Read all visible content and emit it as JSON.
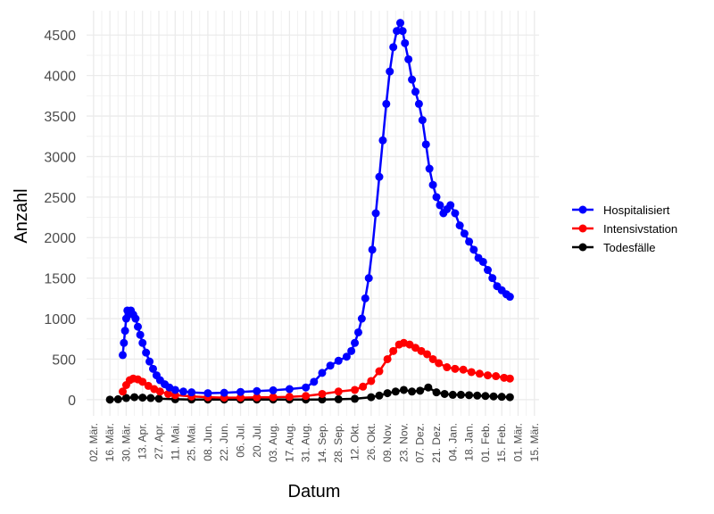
{
  "chart_data": {
    "type": "line",
    "xlabel": "Datum",
    "ylabel": "Anzahl",
    "ylim": [
      -200,
      4800
    ],
    "xlim": [
      "2020-02-25",
      "2021-03-19"
    ],
    "yticks": [
      0,
      500,
      1000,
      1500,
      2000,
      2500,
      3000,
      3500,
      4000,
      4500
    ],
    "xticks": [
      {
        "date": "2020-03-02",
        "label": "02. Mär."
      },
      {
        "date": "2020-03-16",
        "label": "16. Mär."
      },
      {
        "date": "2020-03-30",
        "label": "30. Mär."
      },
      {
        "date": "2020-04-13",
        "label": "13. Apr."
      },
      {
        "date": "2020-04-27",
        "label": "27. Apr."
      },
      {
        "date": "2020-05-11",
        "label": "11. Mai."
      },
      {
        "date": "2020-05-25",
        "label": "25. Mai."
      },
      {
        "date": "2020-06-08",
        "label": "08. Jun."
      },
      {
        "date": "2020-06-22",
        "label": "22. Jun."
      },
      {
        "date": "2020-07-06",
        "label": "06. Jul."
      },
      {
        "date": "2020-07-20",
        "label": "20. Jul."
      },
      {
        "date": "2020-08-03",
        "label": "03. Aug."
      },
      {
        "date": "2020-08-17",
        "label": "17. Aug."
      },
      {
        "date": "2020-08-31",
        "label": "31. Aug."
      },
      {
        "date": "2020-09-14",
        "label": "14. Sep."
      },
      {
        "date": "2020-09-28",
        "label": "28. Sep."
      },
      {
        "date": "2020-10-12",
        "label": "12. Okt."
      },
      {
        "date": "2020-10-26",
        "label": "26. Okt."
      },
      {
        "date": "2020-11-09",
        "label": "09. Nov."
      },
      {
        "date": "2020-11-23",
        "label": "23. Nov."
      },
      {
        "date": "2020-12-07",
        "label": "07. Dez."
      },
      {
        "date": "2020-12-21",
        "label": "21. Dez."
      },
      {
        "date": "2021-01-04",
        "label": "04. Jan."
      },
      {
        "date": "2021-01-18",
        "label": "18. Jan."
      },
      {
        "date": "2021-02-01",
        "label": "01. Feb."
      },
      {
        "date": "2021-02-15",
        "label": "15. Feb."
      },
      {
        "date": "2021-03-01",
        "label": "01. Mär."
      },
      {
        "date": "2021-03-15",
        "label": "15. Mär."
      }
    ],
    "grid": true,
    "legend_position": "right",
    "series": [
      {
        "name": "Hospitalisiert",
        "color": "#0000ff",
        "points": [
          [
            "2020-03-27",
            550
          ],
          [
            "2020-03-28",
            700
          ],
          [
            "2020-03-29",
            850
          ],
          [
            "2020-03-30",
            1000
          ],
          [
            "2020-03-31",
            1100
          ],
          [
            "2020-04-01",
            1050
          ],
          [
            "2020-04-03",
            1100
          ],
          [
            "2020-04-05",
            1050
          ],
          [
            "2020-04-07",
            1000
          ],
          [
            "2020-04-09",
            900
          ],
          [
            "2020-04-11",
            800
          ],
          [
            "2020-04-13",
            700
          ],
          [
            "2020-04-16",
            580
          ],
          [
            "2020-04-19",
            470
          ],
          [
            "2020-04-22",
            380
          ],
          [
            "2020-04-25",
            300
          ],
          [
            "2020-04-28",
            240
          ],
          [
            "2020-05-02",
            190
          ],
          [
            "2020-05-06",
            150
          ],
          [
            "2020-05-11",
            120
          ],
          [
            "2020-05-18",
            100
          ],
          [
            "2020-05-25",
            90
          ],
          [
            "2020-06-08",
            80
          ],
          [
            "2020-06-22",
            85
          ],
          [
            "2020-07-06",
            95
          ],
          [
            "2020-07-20",
            105
          ],
          [
            "2020-08-03",
            115
          ],
          [
            "2020-08-17",
            130
          ],
          [
            "2020-08-31",
            150
          ],
          [
            "2020-09-07",
            220
          ],
          [
            "2020-09-14",
            330
          ],
          [
            "2020-09-21",
            420
          ],
          [
            "2020-09-28",
            480
          ],
          [
            "2020-10-05",
            530
          ],
          [
            "2020-10-09",
            600
          ],
          [
            "2020-10-12",
            700
          ],
          [
            "2020-10-15",
            830
          ],
          [
            "2020-10-18",
            1000
          ],
          [
            "2020-10-21",
            1250
          ],
          [
            "2020-10-24",
            1500
          ],
          [
            "2020-10-27",
            1850
          ],
          [
            "2020-10-30",
            2300
          ],
          [
            "2020-11-02",
            2750
          ],
          [
            "2020-11-05",
            3200
          ],
          [
            "2020-11-08",
            3650
          ],
          [
            "2020-11-11",
            4050
          ],
          [
            "2020-11-14",
            4350
          ],
          [
            "2020-11-17",
            4550
          ],
          [
            "2020-11-20",
            4650
          ],
          [
            "2020-11-22",
            4550
          ],
          [
            "2020-11-24",
            4400
          ],
          [
            "2020-11-27",
            4200
          ],
          [
            "2020-11-30",
            3950
          ],
          [
            "2020-12-03",
            3800
          ],
          [
            "2020-12-06",
            3650
          ],
          [
            "2020-12-09",
            3450
          ],
          [
            "2020-12-12",
            3150
          ],
          [
            "2020-12-15",
            2850
          ],
          [
            "2020-12-18",
            2650
          ],
          [
            "2020-12-21",
            2500
          ],
          [
            "2020-12-24",
            2400
          ],
          [
            "2020-12-27",
            2300
          ],
          [
            "2020-12-30",
            2350
          ],
          [
            "2021-01-02",
            2400
          ],
          [
            "2021-01-06",
            2300
          ],
          [
            "2021-01-10",
            2150
          ],
          [
            "2021-01-14",
            2050
          ],
          [
            "2021-01-18",
            1950
          ],
          [
            "2021-01-22",
            1850
          ],
          [
            "2021-01-26",
            1750
          ],
          [
            "2021-01-30",
            1700
          ],
          [
            "2021-02-03",
            1600
          ],
          [
            "2021-02-07",
            1500
          ],
          [
            "2021-02-11",
            1400
          ],
          [
            "2021-02-15",
            1350
          ],
          [
            "2021-02-19",
            1300
          ],
          [
            "2021-02-22",
            1270
          ]
        ]
      },
      {
        "name": "Intensivstation",
        "color": "#ff0000",
        "points": [
          [
            "2020-03-27",
            100
          ],
          [
            "2020-03-30",
            180
          ],
          [
            "2020-04-02",
            240
          ],
          [
            "2020-04-05",
            260
          ],
          [
            "2020-04-09",
            250
          ],
          [
            "2020-04-13",
            220
          ],
          [
            "2020-04-18",
            170
          ],
          [
            "2020-04-23",
            130
          ],
          [
            "2020-04-28",
            100
          ],
          [
            "2020-05-05",
            70
          ],
          [
            "2020-05-11",
            55
          ],
          [
            "2020-05-25",
            40
          ],
          [
            "2020-06-08",
            30
          ],
          [
            "2020-06-22",
            25
          ],
          [
            "2020-07-06",
            25
          ],
          [
            "2020-07-20",
            28
          ],
          [
            "2020-08-03",
            30
          ],
          [
            "2020-08-17",
            35
          ],
          [
            "2020-08-31",
            45
          ],
          [
            "2020-09-14",
            70
          ],
          [
            "2020-09-28",
            100
          ],
          [
            "2020-10-12",
            120
          ],
          [
            "2020-10-19",
            160
          ],
          [
            "2020-10-26",
            230
          ],
          [
            "2020-11-02",
            350
          ],
          [
            "2020-11-09",
            500
          ],
          [
            "2020-11-14",
            600
          ],
          [
            "2020-11-19",
            680
          ],
          [
            "2020-11-23",
            700
          ],
          [
            "2020-11-28",
            680
          ],
          [
            "2020-12-03",
            640
          ],
          [
            "2020-12-08",
            600
          ],
          [
            "2020-12-13",
            560
          ],
          [
            "2020-12-18",
            500
          ],
          [
            "2020-12-23",
            450
          ],
          [
            "2020-12-30",
            400
          ],
          [
            "2021-01-06",
            380
          ],
          [
            "2021-01-13",
            370
          ],
          [
            "2021-01-20",
            340
          ],
          [
            "2021-01-27",
            320
          ],
          [
            "2021-02-03",
            300
          ],
          [
            "2021-02-10",
            290
          ],
          [
            "2021-02-17",
            270
          ],
          [
            "2021-02-22",
            260
          ]
        ]
      },
      {
        "name": "Todesfälle",
        "color": "#000000",
        "points": [
          [
            "2020-03-16",
            0
          ],
          [
            "2020-03-23",
            5
          ],
          [
            "2020-03-30",
            20
          ],
          [
            "2020-04-06",
            30
          ],
          [
            "2020-04-13",
            25
          ],
          [
            "2020-04-20",
            20
          ],
          [
            "2020-04-27",
            12
          ],
          [
            "2020-05-11",
            5
          ],
          [
            "2020-05-25",
            2
          ],
          [
            "2020-06-08",
            1
          ],
          [
            "2020-06-22",
            1
          ],
          [
            "2020-07-06",
            1
          ],
          [
            "2020-07-20",
            1
          ],
          [
            "2020-08-03",
            1
          ],
          [
            "2020-08-17",
            1
          ],
          [
            "2020-08-31",
            1
          ],
          [
            "2020-09-14",
            2
          ],
          [
            "2020-09-28",
            5
          ],
          [
            "2020-10-12",
            10
          ],
          [
            "2020-10-26",
            30
          ],
          [
            "2020-11-02",
            50
          ],
          [
            "2020-11-09",
            80
          ],
          [
            "2020-11-16",
            100
          ],
          [
            "2020-11-23",
            120
          ],
          [
            "2020-11-30",
            100
          ],
          [
            "2020-12-07",
            110
          ],
          [
            "2020-12-14",
            150
          ],
          [
            "2020-12-21",
            90
          ],
          [
            "2020-12-28",
            70
          ],
          [
            "2021-01-04",
            60
          ],
          [
            "2021-01-11",
            60
          ],
          [
            "2021-01-18",
            55
          ],
          [
            "2021-01-25",
            50
          ],
          [
            "2021-02-01",
            45
          ],
          [
            "2021-02-08",
            40
          ],
          [
            "2021-02-15",
            35
          ],
          [
            "2021-02-22",
            30
          ]
        ]
      }
    ]
  }
}
